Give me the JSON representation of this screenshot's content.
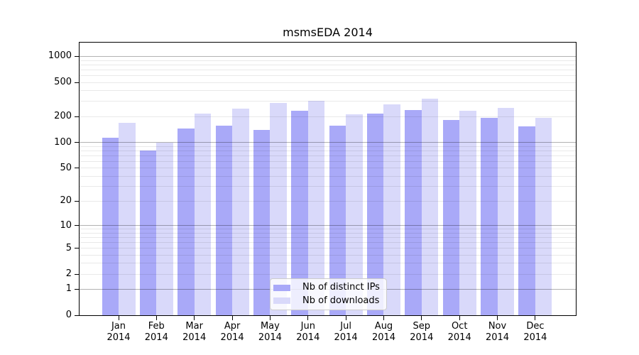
{
  "title": "msmsEDA 2014",
  "chart_data": {
    "type": "bar",
    "title": "msmsEDA 2014",
    "months": [
      "Jan",
      "Feb",
      "Mar",
      "Apr",
      "May",
      "Jun",
      "Jul",
      "Aug",
      "Sep",
      "Oct",
      "Nov",
      "Dec"
    ],
    "year": "2014",
    "categories": [
      "Jan 2014",
      "Feb 2014",
      "Mar 2014",
      "Apr 2014",
      "May 2014",
      "Jun 2014",
      "Jul 2014",
      "Aug 2014",
      "Sep 2014",
      "Oct 2014",
      "Nov 2014",
      "Dec 2014"
    ],
    "series": [
      {
        "name": "Nb of distinct IPs",
        "color": "#a9a9f8",
        "values": [
          114,
          81,
          144,
          157,
          141,
          236,
          158,
          215,
          240,
          182,
          192,
          154
        ]
      },
      {
        "name": "Nb of downloads",
        "color": "#d9d9fa",
        "values": [
          169,
          100,
          218,
          249,
          291,
          307,
          214,
          280,
          325,
          232,
          250,
          195
        ]
      }
    ],
    "xlabel": "",
    "ylabel": "",
    "y_scale": "log10(1+x)",
    "ylim": [
      0,
      1455
    ],
    "y_ticks": [
      0,
      1,
      2,
      5,
      10,
      20,
      50,
      100,
      200,
      500,
      1000
    ],
    "grid": {
      "major_lines": [
        1,
        10,
        100,
        1000
      ],
      "minor_lines": [
        2,
        3,
        4,
        5,
        6,
        7,
        8,
        9,
        20,
        30,
        40,
        50,
        60,
        70,
        80,
        90,
        200,
        300,
        400,
        500,
        600,
        700,
        800,
        900
      ]
    },
    "legend_position": "inside-bottom-center"
  },
  "colors": {
    "bar_distinct_ips": "#a9a9f8",
    "bar_downloads": "#d9d9fa",
    "grid_major": "rgba(0,0,0,0.30)",
    "grid_minor": "rgba(0,0,0,0.085)",
    "frame": "#000000",
    "background": "#ffffff"
  }
}
